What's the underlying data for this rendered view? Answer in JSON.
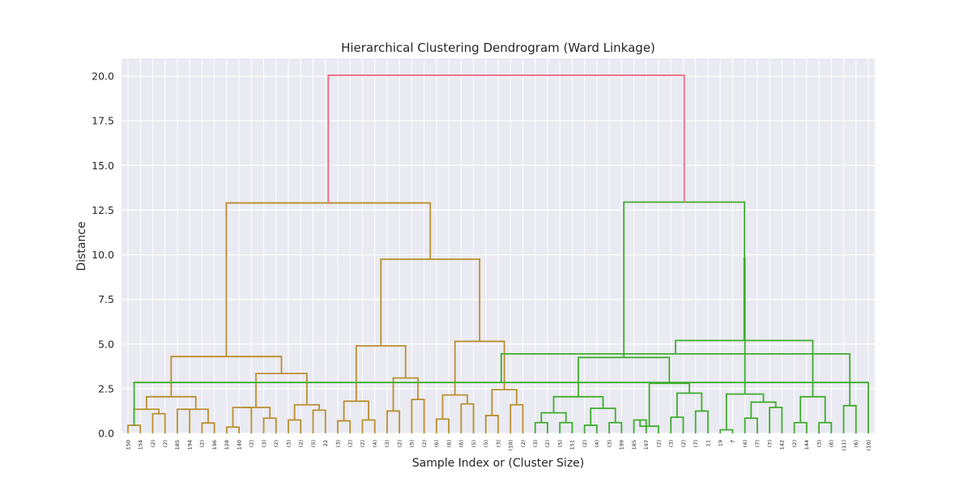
{
  "chart_data": {
    "type": "dendrogram",
    "title": "Hierarchical Clustering Dendrogram (Ward Linkage)",
    "xlabel": "Sample Index or (Cluster Size)",
    "ylabel": "Distance",
    "ylim": [
      0,
      21
    ],
    "yticks": [
      "0.0",
      "2.5",
      "5.0",
      "7.5",
      "10.0",
      "12.5",
      "15.0",
      "17.5",
      "20.0"
    ],
    "grid": true,
    "background": "#eaeaf2",
    "colors": {
      "orange": "#b9902f",
      "green": "#3fad2c",
      "root": "#f0697f"
    },
    "leaves": [
      "150",
      "154",
      "(2)",
      "(2)",
      "185",
      "194",
      "(2)",
      "196",
      "128",
      "140",
      "(2)",
      "(3)",
      "(2)",
      "(3)",
      "(2)",
      "(5)",
      "22",
      "(3)",
      "(2)",
      "(2)",
      "(4)",
      "(3)",
      "(2)",
      "(5)",
      "(2)",
      "(6)",
      "(6)",
      "(6)",
      "(5)",
      "(5)",
      "(3)",
      "(10)",
      "(2)",
      "(3)",
      "(2)",
      "(5)",
      "151",
      "(2)",
      "(4)",
      "(3)",
      "199",
      "185",
      "197",
      "(2)",
      "(3)",
      "(2)",
      "(7)",
      "11",
      "19",
      "7",
      "(4)",
      "(7)",
      "(7)",
      "142",
      "(2)",
      "144",
      "(3)",
      "(6)",
      "(11)",
      "(6)",
      "(10)"
    ],
    "merges": [
      {
        "a": 0,
        "b": 1,
        "h": 0.45,
        "c": "orange"
      },
      {
        "a": 2,
        "b": 3,
        "h": 1.1,
        "c": "orange"
      },
      {
        "a": 61,
        "b": 62,
        "h": 1.35,
        "c": "orange"
      },
      {
        "a": 4,
        "b": 5,
        "h": 1.35,
        "c": "orange"
      },
      {
        "a": 6,
        "b": 7,
        "h": 0.58,
        "c": "orange"
      },
      {
        "a": 64,
        "b": 65,
        "h": 1.35,
        "c": "orange"
      },
      {
        "a": 63,
        "b": 66,
        "h": 2.05,
        "c": "orange"
      },
      {
        "a": 8,
        "b": 9,
        "h": 0.35,
        "c": "orange"
      },
      {
        "a": 68,
        "b": 10,
        "h": 1.45,
        "c": "orange"
      },
      {
        "a": 11,
        "b": 12,
        "h": 0.85,
        "c": "orange"
      },
      {
        "a": 69,
        "b": 70,
        "h": 1.45,
        "c": "orange"
      },
      {
        "a": 13,
        "b": 14,
        "h": 0.75,
        "c": "orange"
      },
      {
        "a": 15,
        "b": 16,
        "h": 1.3,
        "c": "orange"
      },
      {
        "a": 72,
        "b": 73,
        "h": 1.6,
        "c": "orange"
      },
      {
        "a": 71,
        "b": 74,
        "h": 3.35,
        "c": "orange"
      },
      {
        "a": 67,
        "b": 75,
        "h": 4.3,
        "c": "orange"
      },
      {
        "a": 17,
        "b": 18,
        "h": 0.7,
        "c": "orange"
      },
      {
        "a": 19,
        "b": 20,
        "h": 0.75,
        "c": "orange"
      },
      {
        "a": 77,
        "b": 78,
        "h": 1.8,
        "c": "orange"
      },
      {
        "a": 21,
        "b": 22,
        "h": 1.25,
        "c": "orange"
      },
      {
        "a": 23,
        "b": 24,
        "h": 1.9,
        "c": "orange"
      },
      {
        "a": 80,
        "b": 81,
        "h": 3.1,
        "c": "orange"
      },
      {
        "a": 79,
        "b": 82,
        "h": 4.9,
        "c": "orange"
      },
      {
        "a": 25,
        "b": 26,
        "h": 0.8,
        "c": "orange"
      },
      {
        "a": 27,
        "b": 28,
        "h": 1.65,
        "c": "orange"
      },
      {
        "a": 84,
        "b": 85,
        "h": 2.15,
        "c": "orange"
      },
      {
        "a": 29,
        "b": 30,
        "h": 1.0,
        "c": "orange"
      },
      {
        "a": 31,
        "b": 32,
        "h": 1.6,
        "c": "orange"
      },
      {
        "a": 87,
        "b": 88,
        "h": 2.45,
        "c": "orange"
      },
      {
        "a": 86,
        "b": 89,
        "h": 5.15,
        "c": "orange"
      },
      {
        "a": 83,
        "b": 90,
        "h": 9.75,
        "c": "orange"
      },
      {
        "a": 76,
        "b": 91,
        "h": 12.9,
        "c": "orange"
      },
      {
        "a": 33,
        "b": 34,
        "h": 0.6,
        "c": "green"
      },
      {
        "a": 35,
        "b": 36,
        "h": 0.6,
        "c": "green"
      },
      {
        "a": 93,
        "b": 94,
        "h": 1.15,
        "c": "green"
      },
      {
        "a": 37,
        "b": 38,
        "h": 0.45,
        "c": "green"
      },
      {
        "a": 39,
        "b": 40,
        "h": 0.6,
        "c": "green"
      },
      {
        "a": 96,
        "b": 97,
        "h": 1.4,
        "c": "green"
      },
      {
        "a": 95,
        "b": 98,
        "h": 2.05,
        "c": "green"
      },
      {
        "a": 41,
        "b": 42,
        "h": 0.75,
        "c": "green"
      },
      {
        "a": 43,
        "b": 100,
        "h": 0.4,
        "c": "green"
      },
      {
        "a": 44,
        "b": 45,
        "h": 0.9,
        "c": "green"
      },
      {
        "a": 46,
        "b": 47,
        "h": 1.25,
        "c": "green"
      },
      {
        "a": 102,
        "b": 103,
        "h": 2.25,
        "c": "green"
      },
      {
        "a": 101,
        "b": 104,
        "h": 2.8,
        "c": "green"
      },
      {
        "a": 99,
        "b": 105,
        "h": 4.25,
        "c": "green"
      },
      {
        "a": 48,
        "b": 49,
        "h": 0.2,
        "c": "green"
      },
      {
        "a": 50,
        "b": 51,
        "h": 0.85,
        "c": "green"
      },
      {
        "a": 52,
        "b": 53,
        "h": 1.45,
        "c": "green"
      },
      {
        "a": 108,
        "b": 109,
        "h": 1.75,
        "c": "green"
      },
      {
        "a": 107,
        "b": 110,
        "h": 2.2,
        "c": "green"
      },
      {
        "a": 54,
        "b": 55,
        "h": 0.6,
        "c": "green"
      },
      {
        "a": 56,
        "b": 57,
        "h": 0.6,
        "c": "green"
      },
      {
        "a": 112,
        "b": 113,
        "h": 2.05,
        "c": "green"
      },
      {
        "a": 58,
        "b": 59,
        "h": 1.55,
        "c": "green"
      },
      {
        "a": 60,
        "b": 61,
        "h": 2.85,
        "c": "green"
      },
      {
        "a": 115,
        "b": 116,
        "h": 4.45,
        "c": "green"
      },
      {
        "a": 114,
        "b": 117,
        "h": 5.2,
        "c": "green"
      },
      {
        "a": 111,
        "b": 118,
        "h": 9.8,
        "c": "green"
      },
      {
        "a": 106,
        "b": 119,
        "h": 12.95,
        "c": "green"
      },
      {
        "a": 92,
        "b": 120,
        "h": 20.05,
        "c": "root"
      }
    ]
  }
}
